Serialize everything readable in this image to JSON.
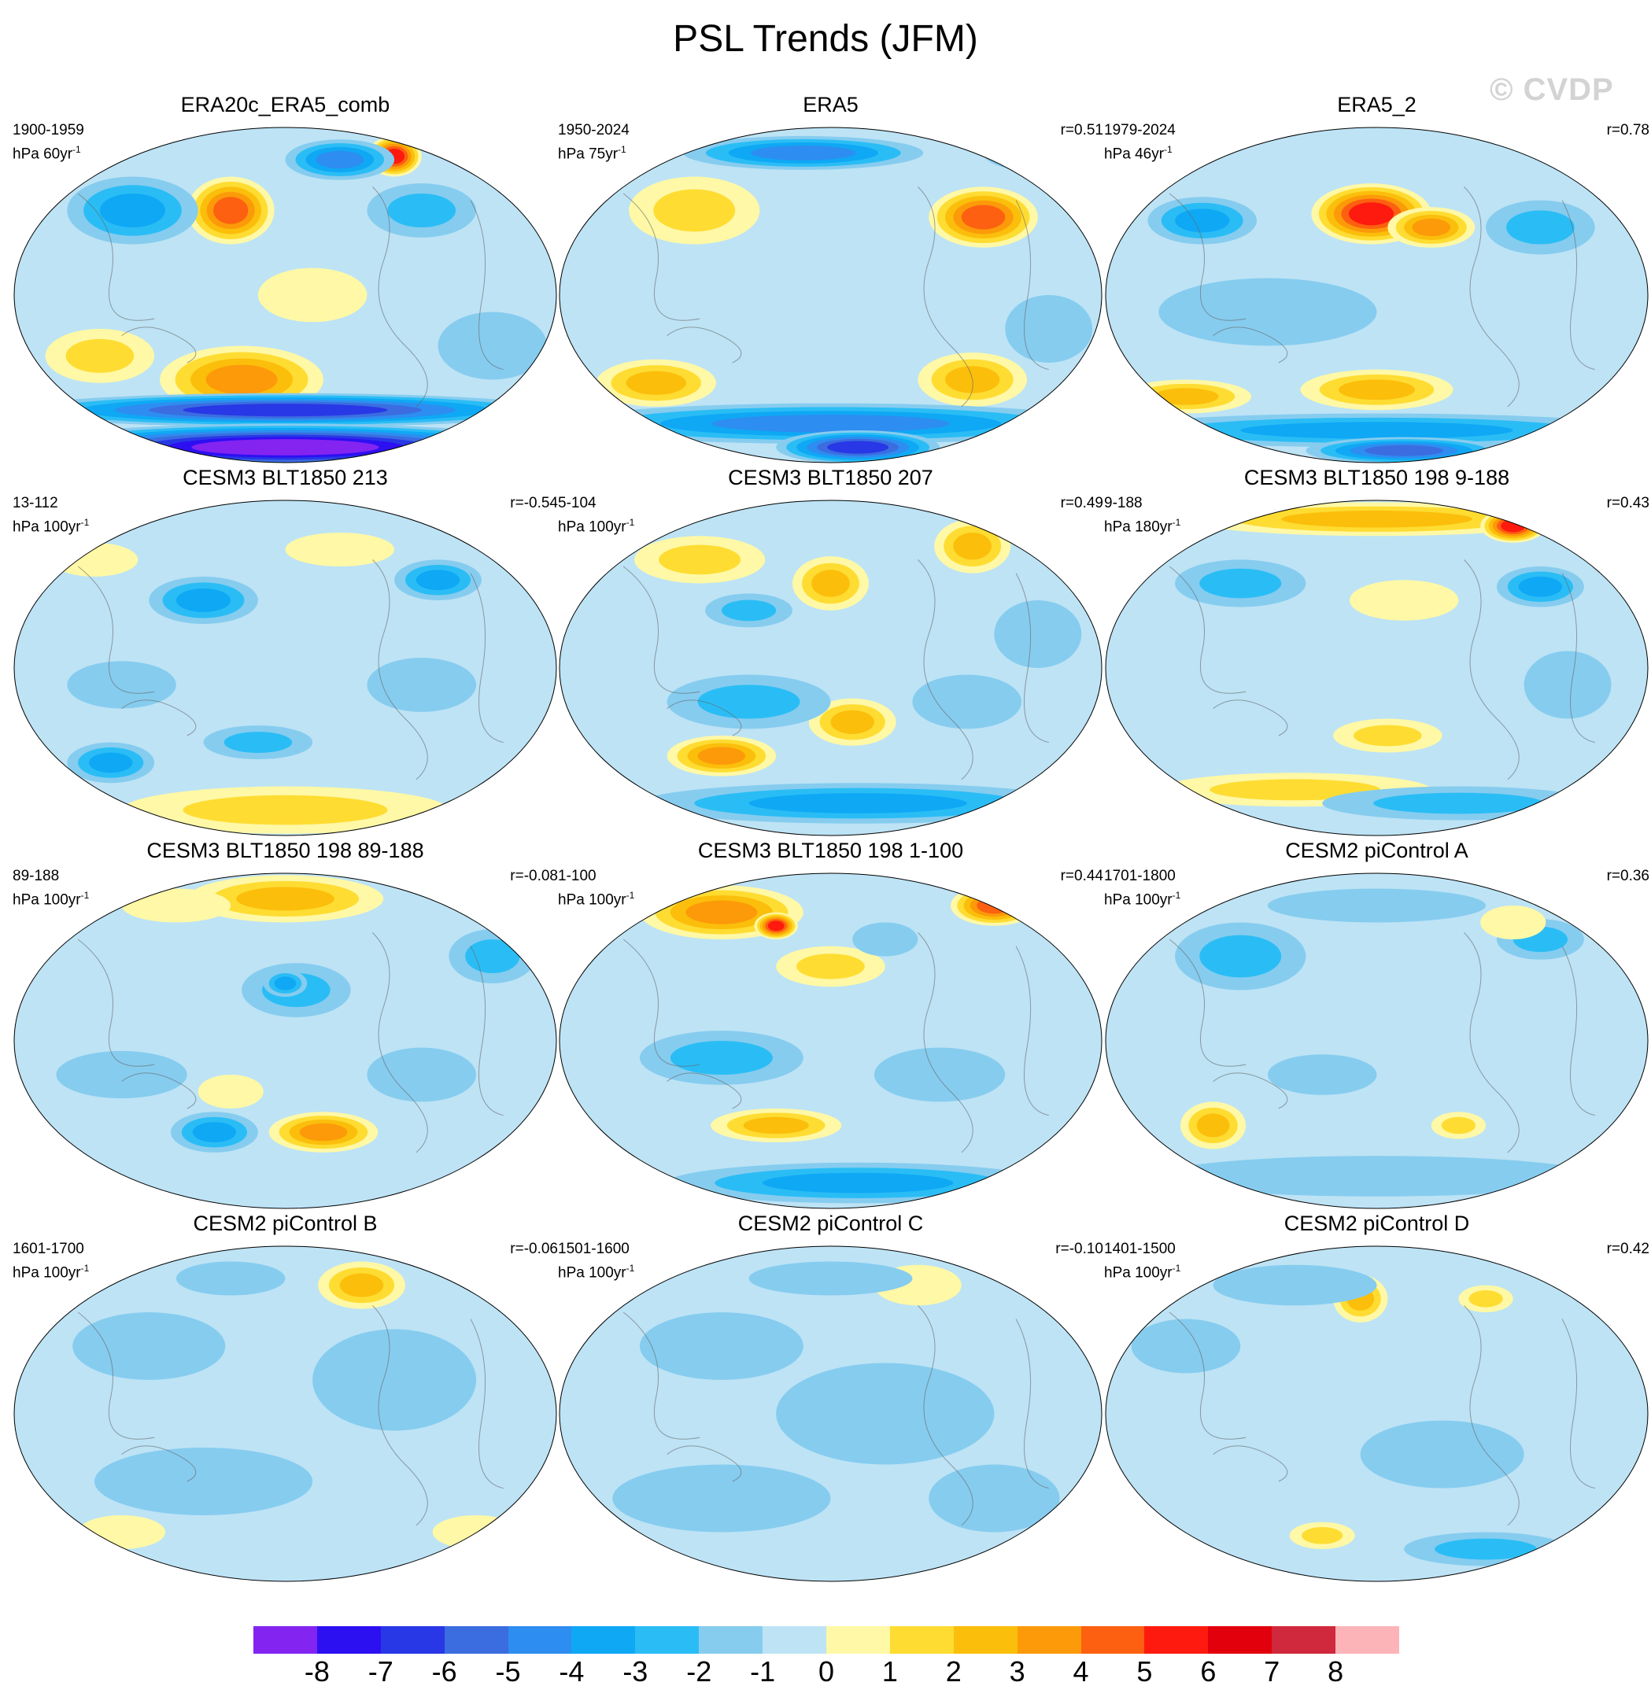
{
  "title": "PSL Trends (JFM)",
  "watermark": "© CVDP",
  "panels": [
    {
      "title": "ERA20c_ERA5_comb",
      "period": "1900-1959",
      "units": "hPa 60yr",
      "r": "",
      "blobs": [
        [
          0.4,
          0.25,
          0.08,
          0.1,
          5
        ],
        [
          0.7,
          0.09,
          0.05,
          0.06,
          6
        ],
        [
          0.42,
          0.75,
          0.15,
          0.1,
          4
        ],
        [
          0.22,
          0.25,
          0.12,
          0.1,
          -3
        ],
        [
          0.6,
          0.1,
          0.1,
          0.06,
          -4
        ],
        [
          0.75,
          0.25,
          0.1,
          0.08,
          -2
        ],
        [
          0.16,
          0.68,
          0.1,
          0.08,
          2
        ],
        [
          0.55,
          0.5,
          0.1,
          0.08,
          1
        ],
        [
          0.88,
          0.65,
          0.1,
          0.1,
          -1
        ],
        [
          0.5,
          0.84,
          0.5,
          0.05,
          -6
        ],
        [
          0.5,
          0.95,
          0.5,
          0.07,
          -8
        ]
      ]
    },
    {
      "title": "ERA5",
      "period": "1950-2024",
      "units": "hPa 75yr",
      "r": "r=0.51",
      "blobs": [
        [
          0.78,
          0.27,
          0.1,
          0.09,
          5
        ],
        [
          0.18,
          0.76,
          0.11,
          0.07,
          3
        ],
        [
          0.76,
          0.75,
          0.1,
          0.08,
          3
        ],
        [
          0.25,
          0.25,
          0.12,
          0.1,
          2
        ],
        [
          0.45,
          0.08,
          0.22,
          0.05,
          -4
        ],
        [
          0.86,
          0.08,
          0.08,
          0.05,
          -5
        ],
        [
          0.5,
          0.88,
          0.5,
          0.06,
          -4
        ],
        [
          0.55,
          0.95,
          0.15,
          0.05,
          -6
        ],
        [
          0.9,
          0.6,
          0.08,
          0.1,
          -1
        ]
      ]
    },
    {
      "title": "ERA5_2",
      "period": "1979-2024",
      "units": "hPa 46yr",
      "r": "r=0.78",
      "blobs": [
        [
          0.49,
          0.26,
          0.11,
          0.09,
          6
        ],
        [
          0.6,
          0.3,
          0.08,
          0.06,
          4
        ],
        [
          0.18,
          0.28,
          0.1,
          0.07,
          -3
        ],
        [
          0.8,
          0.3,
          0.1,
          0.08,
          -2
        ],
        [
          0.15,
          0.8,
          0.12,
          0.05,
          3
        ],
        [
          0.5,
          0.78,
          0.14,
          0.06,
          3
        ],
        [
          0.3,
          0.55,
          0.2,
          0.1,
          -1
        ],
        [
          0.5,
          0.9,
          0.5,
          0.05,
          -3
        ],
        [
          0.55,
          0.96,
          0.18,
          0.04,
          -5
        ]
      ]
    },
    {
      "title": "CESM3 BLT1850 213",
      "period": "13-112",
      "units": "hPa 100yr",
      "r": "r=-0.54",
      "blobs": [
        [
          0.35,
          0.3,
          0.1,
          0.07,
          -3
        ],
        [
          0.78,
          0.24,
          0.08,
          0.06,
          -3
        ],
        [
          0.18,
          0.78,
          0.08,
          0.06,
          -3
        ],
        [
          0.45,
          0.72,
          0.1,
          0.05,
          -2
        ],
        [
          0.5,
          0.92,
          0.3,
          0.07,
          2
        ],
        [
          0.15,
          0.18,
          0.08,
          0.05,
          1
        ],
        [
          0.6,
          0.15,
          0.1,
          0.05,
          1
        ],
        [
          0.2,
          0.55,
          0.1,
          0.07,
          -1
        ],
        [
          0.75,
          0.55,
          0.1,
          0.08,
          -1
        ]
      ]
    },
    {
      "title": "CESM3 BLT1850 207",
      "period": "5-104",
      "units": "hPa 100yr",
      "r": "r=0.49",
      "blobs": [
        [
          0.26,
          0.18,
          0.12,
          0.07,
          2
        ],
        [
          0.5,
          0.25,
          0.07,
          0.08,
          3
        ],
        [
          0.76,
          0.14,
          0.07,
          0.08,
          3
        ],
        [
          0.54,
          0.66,
          0.08,
          0.07,
          3
        ],
        [
          0.3,
          0.76,
          0.1,
          0.06,
          4
        ],
        [
          0.55,
          0.9,
          0.4,
          0.06,
          -3
        ],
        [
          0.35,
          0.6,
          0.15,
          0.08,
          -2
        ],
        [
          0.35,
          0.33,
          0.08,
          0.05,
          -2
        ],
        [
          0.75,
          0.6,
          0.1,
          0.08,
          -1
        ],
        [
          0.88,
          0.4,
          0.08,
          0.1,
          -1
        ]
      ]
    },
    {
      "title": "CESM3 BLT1850 198 9-188",
      "period": "9-188",
      "units": "hPa 180yr",
      "r": "r=0.43",
      "blobs": [
        [
          0.5,
          0.06,
          0.35,
          0.05,
          3
        ],
        [
          0.75,
          0.08,
          0.06,
          0.05,
          6
        ],
        [
          0.8,
          0.26,
          0.08,
          0.06,
          -3
        ],
        [
          0.25,
          0.25,
          0.12,
          0.07,
          -2
        ],
        [
          0.55,
          0.3,
          0.1,
          0.06,
          1
        ],
        [
          0.52,
          0.7,
          0.1,
          0.05,
          2
        ],
        [
          0.35,
          0.86,
          0.25,
          0.05,
          2
        ],
        [
          0.65,
          0.9,
          0.25,
          0.05,
          -2
        ],
        [
          0.85,
          0.55,
          0.08,
          0.1,
          -1
        ]
      ]
    },
    {
      "title": "CESM3 BLT1850 198 89-188",
      "period": "89-188",
      "units": "hPa 100yr",
      "r": "r=-0.08",
      "blobs": [
        [
          0.5,
          0.08,
          0.18,
          0.07,
          3
        ],
        [
          0.3,
          0.1,
          0.1,
          0.05,
          1
        ],
        [
          0.52,
          0.35,
          0.1,
          0.08,
          -2
        ],
        [
          0.5,
          0.33,
          0.04,
          0.04,
          -3
        ],
        [
          0.37,
          0.77,
          0.08,
          0.06,
          -3
        ],
        [
          0.57,
          0.77,
          0.1,
          0.06,
          4
        ],
        [
          0.4,
          0.65,
          0.06,
          0.05,
          1
        ],
        [
          0.88,
          0.25,
          0.08,
          0.08,
          -2
        ],
        [
          0.2,
          0.6,
          0.12,
          0.07,
          -1
        ],
        [
          0.75,
          0.6,
          0.1,
          0.08,
          -1
        ]
      ]
    },
    {
      "title": "CESM3 BLT1850 198 1-100",
      "period": "1-100",
      "units": "hPa 100yr",
      "r": "r=0.44",
      "blobs": [
        [
          0.3,
          0.12,
          0.15,
          0.08,
          4
        ],
        [
          0.4,
          0.16,
          0.04,
          0.04,
          6
        ],
        [
          0.8,
          0.1,
          0.08,
          0.06,
          5
        ],
        [
          0.5,
          0.28,
          0.1,
          0.06,
          2
        ],
        [
          0.4,
          0.75,
          0.12,
          0.05,
          3
        ],
        [
          0.55,
          0.92,
          0.35,
          0.06,
          -3
        ],
        [
          0.3,
          0.55,
          0.15,
          0.08,
          -2
        ],
        [
          0.7,
          0.6,
          0.12,
          0.08,
          -1
        ],
        [
          0.6,
          0.2,
          0.06,
          0.05,
          -1
        ]
      ]
    },
    {
      "title": "CESM2 piControl A",
      "period": "1701-1800",
      "units": "hPa 100yr",
      "r": "r=0.36",
      "blobs": [
        [
          0.2,
          0.75,
          0.06,
          0.07,
          3
        ],
        [
          0.65,
          0.75,
          0.05,
          0.04,
          2
        ],
        [
          0.25,
          0.25,
          0.12,
          0.1,
          -2
        ],
        [
          0.8,
          0.2,
          0.08,
          0.06,
          -2
        ],
        [
          0.5,
          0.1,
          0.2,
          0.05,
          -1
        ],
        [
          0.5,
          0.9,
          0.4,
          0.06,
          -1
        ],
        [
          0.75,
          0.15,
          0.06,
          0.05,
          1
        ],
        [
          0.4,
          0.6,
          0.1,
          0.06,
          -1
        ]
      ]
    },
    {
      "title": "CESM2 piControl B",
      "period": "1601-1700",
      "units": "hPa 100yr",
      "r": "r=-0.06",
      "blobs": [
        [
          0.64,
          0.12,
          0.08,
          0.07,
          3
        ],
        [
          0.25,
          0.3,
          0.14,
          0.1,
          -1
        ],
        [
          0.7,
          0.4,
          0.15,
          0.15,
          -1
        ],
        [
          0.35,
          0.7,
          0.2,
          0.1,
          -1
        ],
        [
          0.4,
          0.1,
          0.1,
          0.05,
          -1
        ],
        [
          0.2,
          0.85,
          0.08,
          0.05,
          1
        ],
        [
          0.85,
          0.85,
          0.08,
          0.05,
          1
        ]
      ]
    },
    {
      "title": "CESM2 piControl C",
      "period": "1501-1600",
      "units": "hPa 100yr",
      "r": "r=-0.10",
      "blobs": [
        [
          0.66,
          0.12,
          0.08,
          0.06,
          1
        ],
        [
          0.3,
          0.3,
          0.15,
          0.1,
          -1
        ],
        [
          0.6,
          0.5,
          0.2,
          0.15,
          -1
        ],
        [
          0.3,
          0.75,
          0.2,
          0.1,
          -1
        ],
        [
          0.8,
          0.75,
          0.12,
          0.1,
          -1
        ],
        [
          0.5,
          0.1,
          0.15,
          0.05,
          -1
        ]
      ]
    },
    {
      "title": "CESM2 piControl D",
      "period": "1401-1500",
      "units": "hPa 100yr",
      "r": "r=0.42",
      "blobs": [
        [
          0.47,
          0.16,
          0.05,
          0.07,
          3
        ],
        [
          0.7,
          0.16,
          0.05,
          0.04,
          2
        ],
        [
          0.4,
          0.86,
          0.06,
          0.04,
          2
        ],
        [
          0.62,
          0.62,
          0.15,
          0.1,
          -1
        ],
        [
          0.35,
          0.12,
          0.15,
          0.06,
          -1
        ],
        [
          0.7,
          0.9,
          0.15,
          0.05,
          -2
        ],
        [
          0.15,
          0.3,
          0.1,
          0.08,
          -1
        ]
      ]
    }
  ],
  "colorbar": {
    "labels": [
      "-8",
      "-7",
      "-6",
      "-5",
      "-4",
      "-3",
      "-2",
      "-1",
      "0",
      "1",
      "2",
      "3",
      "4",
      "5",
      "6",
      "7",
      "8"
    ],
    "colors": [
      "#8424f0",
      "#2d10f2",
      "#2838e6",
      "#3b6de0",
      "#2e8df0",
      "#0fa8f5",
      "#2abdf5",
      "#86ccef",
      "#bde3f5",
      "#fff8a6",
      "#fedc32",
      "#fbbe0b",
      "#fc9a09",
      "#fc6010",
      "#fe1a0e",
      "#e2000d",
      "#d0283c",
      "#fdb4b8"
    ],
    "steps": [
      -8.5,
      -7.5,
      -6.5,
      -5.5,
      -4.5,
      -3.5,
      -2.5,
      -1.5,
      -0.5,
      0.5,
      1.5,
      2.5,
      3.5,
      4.5,
      5.5,
      6.5,
      7.5,
      8.5
    ]
  }
}
